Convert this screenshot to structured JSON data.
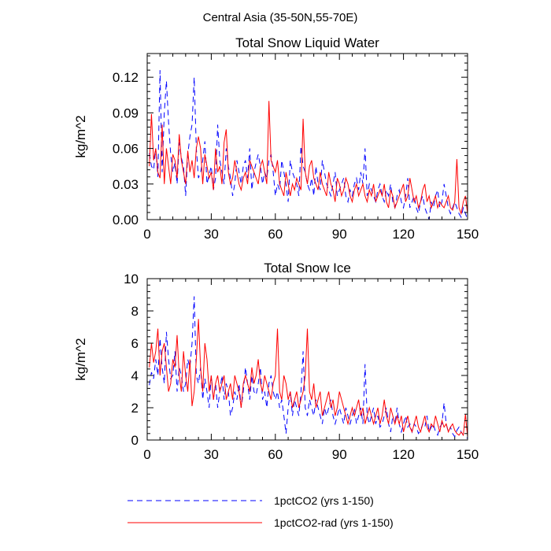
{
  "figure": {
    "title": "Central Asia (35-50N,55-70E)"
  },
  "legend": {
    "placement": "bottom-center",
    "items": [
      {
        "label": "1pctCO2 (yrs 1-150)",
        "color": "#0000ff",
        "dash": "dashed"
      },
      {
        "label": "1pctCO2-rad (yrs 1-150)",
        "color": "#ff0000",
        "dash": "solid"
      }
    ]
  },
  "chart_data": [
    {
      "type": "line",
      "title": "Total Snow Liquid Water",
      "xlabel": "",
      "ylabel": "kg/m^2",
      "xlim": [
        0,
        150
      ],
      "ylim": [
        0,
        0.14
      ],
      "xticks": [
        "0",
        "30",
        "60",
        "90",
        "120",
        "150"
      ],
      "yticks": [
        "0.00",
        "0.03",
        "0.06",
        "0.09",
        "0.12"
      ],
      "grid": false,
      "series": [
        {
          "name": "1pctCO2 (yrs 1-150)",
          "color": "#0000ff",
          "dash": "dashed",
          "x_start": 1,
          "values": [
            0.056,
            0.045,
            0.042,
            0.06,
            0.036,
            0.126,
            0.04,
            0.09,
            0.117,
            0.082,
            0.055,
            0.04,
            0.048,
            0.03,
            0.065,
            0.052,
            0.045,
            0.02,
            0.055,
            0.07,
            0.08,
            0.12,
            0.06,
            0.035,
            0.04,
            0.05,
            0.066,
            0.03,
            0.038,
            0.045,
            0.025,
            0.035,
            0.08,
            0.05,
            0.04,
            0.03,
            0.06,
            0.045,
            0.035,
            0.02,
            0.03,
            0.05,
            0.04,
            0.03,
            0.045,
            0.05,
            0.035,
            0.06,
            0.025,
            0.04,
            0.048,
            0.055,
            0.045,
            0.03,
            0.04,
            0.035,
            0.05,
            0.055,
            0.04,
            0.02,
            0.03,
            0.025,
            0.05,
            0.04,
            0.03,
            0.015,
            0.05,
            0.04,
            0.035,
            0.03,
            0.02,
            0.062,
            0.045,
            0.04,
            0.03,
            0.025,
            0.035,
            0.02,
            0.045,
            0.03,
            0.025,
            0.05,
            0.04,
            0.03,
            0.025,
            0.02,
            0.03,
            0.04,
            0.02,
            0.025,
            0.03,
            0.035,
            0.02,
            0.015,
            0.025,
            0.02,
            0.03,
            0.035,
            0.025,
            0.04,
            0.03,
            0.06,
            0.02,
            0.03,
            0.025,
            0.02,
            0.015,
            0.025,
            0.03,
            0.02,
            0.015,
            0.025,
            0.02,
            0.03,
            0.015,
            0.01,
            0.02,
            0.025,
            0.015,
            0.01,
            0.02,
            0.035,
            0.01,
            0.015,
            0.02,
            0.01,
            0.005,
            0.015,
            0.02,
            0.01,
            0.005,
            0.0,
            0.015,
            0.01,
            0.02,
            0.025,
            0.01,
            0.015,
            0.03,
            0.02,
            0.01,
            0.005,
            0.01,
            0.015,
            0.01,
            0.005,
            0.002,
            0.01,
            0.005,
            0.0
          ]
        },
        {
          "name": "1pctCO2-rad (yrs 1-150)",
          "color": "#ff0000",
          "dash": "solid",
          "x_start": 1,
          "values": [
            0.045,
            0.089,
            0.05,
            0.06,
            0.04,
            0.035,
            0.08,
            0.03,
            0.06,
            0.045,
            0.03,
            0.055,
            0.05,
            0.035,
            0.072,
            0.05,
            0.04,
            0.03,
            0.058,
            0.04,
            0.05,
            0.035,
            0.06,
            0.07,
            0.06,
            0.03,
            0.055,
            0.045,
            0.035,
            0.04,
            0.025,
            0.06,
            0.04,
            0.045,
            0.03,
            0.065,
            0.076,
            0.04,
            0.03,
            0.035,
            0.05,
            0.04,
            0.03,
            0.025,
            0.035,
            0.04,
            0.03,
            0.05,
            0.045,
            0.04,
            0.035,
            0.03,
            0.045,
            0.05,
            0.04,
            0.03,
            0.1,
            0.05,
            0.045,
            0.04,
            0.05,
            0.03,
            0.025,
            0.02,
            0.04,
            0.03,
            0.02,
            0.03,
            0.025,
            0.035,
            0.03,
            0.025,
            0.085,
            0.04,
            0.03,
            0.045,
            0.05,
            0.035,
            0.03,
            0.025,
            0.04,
            0.03,
            0.025,
            0.02,
            0.04,
            0.03,
            0.025,
            0.015,
            0.035,
            0.03,
            0.02,
            0.025,
            0.035,
            0.03,
            0.02,
            0.015,
            0.025,
            0.03,
            0.02,
            0.025,
            0.03,
            0.02,
            0.015,
            0.025,
            0.02,
            0.03,
            0.015,
            0.02,
            0.025,
            0.02,
            0.03,
            0.015,
            0.01,
            0.025,
            0.02,
            0.01,
            0.015,
            0.02,
            0.025,
            0.03,
            0.015,
            0.02,
            0.035,
            0.025,
            0.015,
            0.02,
            0.01,
            0.015,
            0.025,
            0.03,
            0.015,
            0.02,
            0.01,
            0.015,
            0.02,
            0.01,
            0.015,
            0.012,
            0.01,
            0.015,
            0.02,
            0.01,
            0.008,
            0.015,
            0.051,
            0.01,
            0.005,
            0.015,
            0.02,
            0.005
          ]
        }
      ]
    },
    {
      "type": "line",
      "title": "Total Snow Ice",
      "xlabel": "",
      "ylabel": "kg/m^2",
      "xlim": [
        0,
        150
      ],
      "ylim": [
        0,
        10
      ],
      "xticks": [
        "0",
        "30",
        "60",
        "90",
        "120",
        "150"
      ],
      "yticks": [
        "0",
        "2",
        "4",
        "6",
        "8",
        "10"
      ],
      "grid": false,
      "series": [
        {
          "name": "1pctCO2 (yrs 1-150)",
          "color": "#0000ff",
          "dash": "dashed",
          "x_start": 1,
          "values": [
            3.4,
            4.2,
            3.8,
            5.0,
            4.0,
            6.3,
            4.5,
            3.5,
            6.7,
            5.0,
            3.8,
            4.0,
            5.5,
            3.0,
            4.5,
            4.0,
            3.0,
            3.5,
            5.0,
            4.5,
            6.0,
            8.9,
            4.0,
            3.5,
            4.5,
            2.5,
            3.8,
            3.0,
            2.0,
            4.0,
            2.5,
            3.5,
            2.0,
            3.0,
            4.0,
            2.5,
            3.5,
            3.0,
            1.5,
            2.0,
            3.0,
            2.5,
            3.5,
            2.0,
            3.0,
            4.5,
            3.5,
            2.5,
            4.0,
            3.0,
            2.8,
            3.5,
            4.5,
            2.5,
            3.0,
            2.0,
            3.5,
            4.0,
            3.0,
            2.5,
            3.0,
            2.0,
            2.5,
            1.5,
            0.4,
            2.0,
            3.0,
            1.5,
            2.5,
            2.0,
            1.5,
            3.0,
            5.5,
            2.0,
            1.5,
            2.5,
            2.0,
            1.5,
            2.5,
            2.0,
            1.5,
            1.0,
            2.0,
            1.5,
            2.0,
            2.5,
            1.5,
            1.0,
            1.5,
            2.0,
            1.5,
            1.0,
            2.0,
            1.5,
            1.0,
            1.5,
            2.0,
            1.0,
            1.5,
            2.0,
            1.0,
            4.7,
            1.5,
            1.0,
            1.5,
            2.0,
            1.0,
            1.5,
            0.8,
            1.0,
            1.5,
            2.0,
            1.0,
            0.5,
            1.5,
            1.0,
            2.0,
            1.0,
            0.5,
            1.0,
            1.5,
            0.8,
            1.0,
            0.5,
            1.0,
            0.8,
            0.4,
            0.6,
            1.0,
            0.8,
            1.5,
            0.5,
            0.8,
            1.0,
            0.5,
            0.3,
            0.8,
            1.0,
            2.3,
            1.0,
            0.5,
            0.8,
            0.4,
            0.2,
            0.6,
            0.8,
            0.5,
            0.3,
            0.2,
            0.1
          ]
        },
        {
          "name": "1pctCO2-rad (yrs 1-150)",
          "color": "#ff0000",
          "dash": "solid",
          "x_start": 1,
          "values": [
            4.5,
            6.0,
            4.8,
            5.5,
            6.9,
            4.0,
            5.5,
            6.0,
            4.5,
            3.0,
            3.5,
            5.0,
            4.5,
            6.5,
            4.0,
            3.0,
            5.5,
            4.0,
            3.0,
            5.0,
            2.1,
            3.0,
            5.0,
            7.5,
            4.5,
            3.0,
            6.0,
            5.0,
            3.0,
            4.0,
            2.5,
            3.5,
            4.0,
            3.0,
            3.5,
            4.0,
            2.5,
            3.0,
            3.5,
            2.5,
            4.0,
            3.5,
            3.0,
            2.0,
            3.5,
            4.0,
            3.5,
            3.0,
            4.5,
            3.5,
            4.0,
            5.0,
            3.5,
            3.0,
            4.0,
            3.5,
            3.0,
            2.5,
            3.5,
            4.0,
            6.9,
            3.0,
            2.5,
            4.0,
            3.5,
            2.5,
            3.0,
            2.0,
            2.5,
            3.0,
            2.0,
            2.5,
            3.0,
            4.0,
            6.9,
            3.0,
            2.5,
            3.5,
            2.0,
            2.5,
            3.0,
            1.5,
            2.0,
            2.5,
            3.0,
            2.0,
            2.5,
            1.5,
            2.0,
            3.0,
            2.5,
            2.0,
            1.5,
            1.0,
            1.5,
            2.0,
            1.5,
            2.0,
            2.5,
            1.5,
            2.0,
            1.0,
            1.5,
            2.0,
            1.5,
            1.0,
            1.5,
            2.0,
            1.0,
            1.5,
            2.5,
            1.5,
            1.0,
            2.0,
            1.5,
            1.0,
            1.5,
            1.0,
            1.5,
            0.5,
            1.0,
            1.5,
            0.8,
            0.5,
            1.0,
            1.5,
            0.8,
            0.5,
            1.0,
            1.5,
            0.8,
            0.5,
            1.0,
            0.8,
            1.5,
            1.0,
            0.5,
            1.2,
            0.8,
            1.0,
            0.5,
            0.8,
            1.0,
            0.6,
            0.4,
            0.3,
            0.5,
            0.3,
            1.6,
            0.2
          ]
        }
      ]
    }
  ]
}
